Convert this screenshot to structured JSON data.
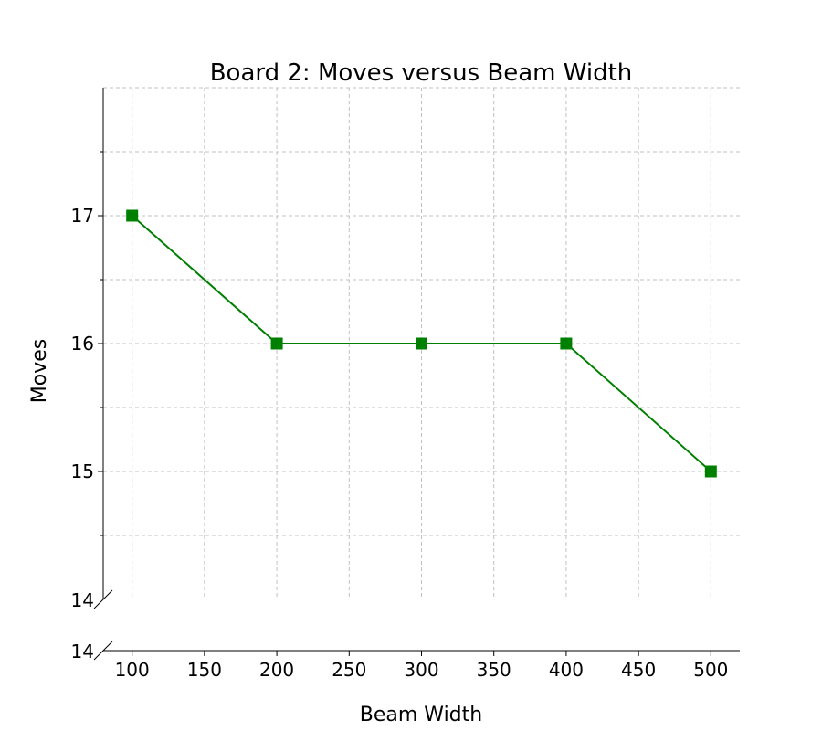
{
  "chart_data": {
    "type": "line",
    "title": "Board 2: Moves versus Beam Width",
    "xlabel": "Beam Width",
    "ylabel": "Moves",
    "x": [
      100,
      200,
      300,
      400,
      500
    ],
    "series": [
      {
        "values": [
          17,
          16,
          16,
          16,
          15
        ],
        "color": "#008000",
        "marker": "square"
      }
    ],
    "xlim": [
      80,
      520
    ],
    "ylim": [
      14,
      18
    ],
    "xticks": [
      100,
      150,
      200,
      250,
      300,
      350,
      400,
      450,
      500
    ],
    "xtick_labels": [
      "100",
      "150",
      "200",
      "250",
      "300",
      "350",
      "400",
      "450",
      "500"
    ],
    "yticks": [
      15,
      16,
      17
    ],
    "ytick_labels": [
      "15",
      "16",
      "17"
    ],
    "y_minor_ticks": [
      14.5,
      15.5,
      16.5,
      17.5
    ],
    "broken_axis_labels": [
      "14",
      "14"
    ],
    "grid": true,
    "grid_style": "dashed",
    "grid_color": "#c0c0c0",
    "legend": false
  }
}
